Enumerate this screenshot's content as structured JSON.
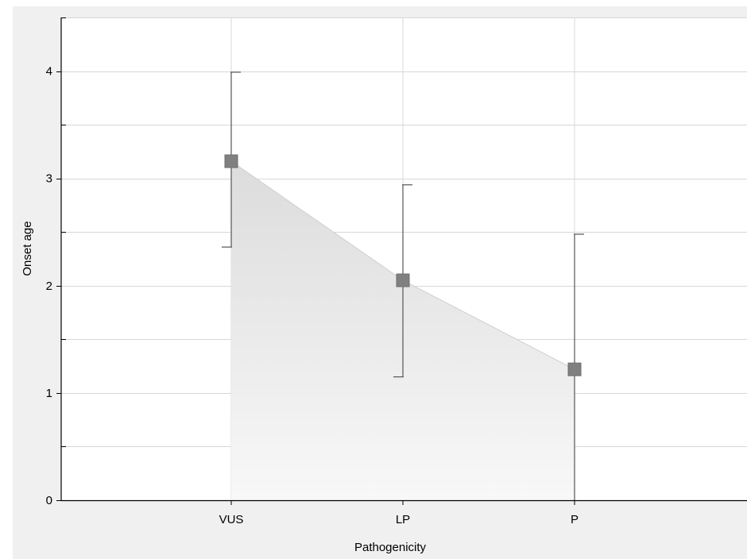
{
  "chart_data": {
    "type": "line",
    "title": "",
    "xlabel": "Pathogenicity",
    "ylabel": "Onset age",
    "categories": [
      "VUS",
      "LP",
      "P"
    ],
    "series": [
      {
        "values": [
          3.16,
          2.05,
          1.22
        ],
        "error_low": [
          2.36,
          1.15,
          -0.05
        ],
        "error_high": [
          3.99,
          2.94,
          2.48
        ]
      }
    ],
    "ylim": [
      0,
      4.5
    ],
    "yticks": [
      0,
      1,
      2,
      3,
      4
    ],
    "ytick_labels": [
      "0",
      "1",
      "2",
      "3",
      "4"
    ],
    "grid": true,
    "fill_under_line": true,
    "colors": {
      "marker": "#808080",
      "errorbar": "#555555",
      "grid": "#d8d8d8",
      "fill_top": "#dcdcdc",
      "fill_bottom": "#f8f8f8",
      "frame_bg": "#f0f0f0",
      "plot_bg": "#ffffff"
    }
  }
}
